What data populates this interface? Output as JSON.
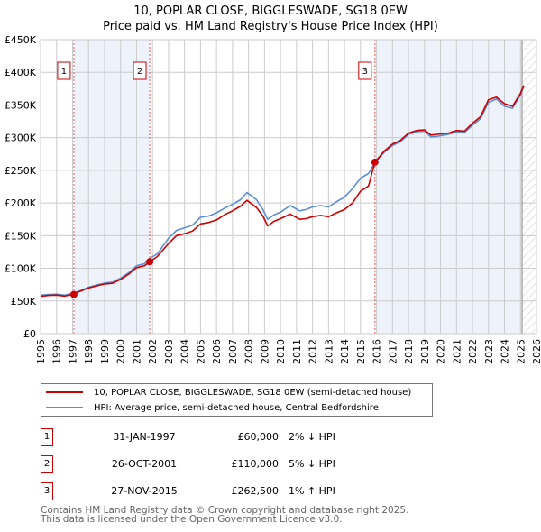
{
  "title_line1": "10, POPLAR CLOSE, BIGGLESWADE, SG18 0EW",
  "title_line2": "Price paid vs. HM Land Registry's House Price Index (HPI)",
  "colors": {
    "price": "#cc0000",
    "hpi": "#5b8fd4",
    "shade": "#eef2fb",
    "grid": "#cccccc"
  },
  "chart_data": {
    "type": "line",
    "title": "10, POPLAR CLOSE, BIGGLESWADE, SG18 0EW — Price paid vs. HM Land Registry's House Price Index (HPI)",
    "xlabel": "",
    "ylabel": "",
    "xlim": [
      1995,
      2026
    ],
    "ylim": [
      0,
      450000
    ],
    "grid": true,
    "x_ticks": [
      "1995",
      "1996",
      "1997",
      "1998",
      "1999",
      "2000",
      "2001",
      "2002",
      "2003",
      "2004",
      "2005",
      "2006",
      "2007",
      "2008",
      "2009",
      "2010",
      "2011",
      "2012",
      "2013",
      "2014",
      "2015",
      "2016",
      "2017",
      "2018",
      "2019",
      "2020",
      "2021",
      "2022",
      "2023",
      "2024",
      "2025",
      "2026"
    ],
    "y_ticks": [
      {
        "v": 0,
        "label": "£0"
      },
      {
        "v": 50000,
        "label": "£50K"
      },
      {
        "v": 100000,
        "label": "£100K"
      },
      {
        "v": 150000,
        "label": "£150K"
      },
      {
        "v": 200000,
        "label": "£200K"
      },
      {
        "v": 250000,
        "label": "£250K"
      },
      {
        "v": 300000,
        "label": "£300K"
      },
      {
        "v": 350000,
        "label": "£350K"
      },
      {
        "v": 400000,
        "label": "£400K"
      },
      {
        "v": 450000,
        "label": "£450K"
      }
    ],
    "shaded_ranges": [
      [
        1997.08,
        2001.82
      ],
      [
        2015.9,
        2025.1
      ]
    ],
    "hatched_from": 2025.1,
    "x": [
      1995,
      1995.5,
      1996,
      1996.5,
      1997,
      1997.5,
      1998,
      1998.5,
      1999,
      1999.5,
      2000,
      2000.5,
      2001,
      2001.5,
      2001.82,
      2002.3,
      2003,
      2003.5,
      2004,
      2004.5,
      2005,
      2005.5,
      2006,
      2006.5,
      2007,
      2007.5,
      2007.9,
      2008.5,
      2008.9,
      2009.2,
      2009.6,
      2010,
      2010.6,
      2011.2,
      2011.6,
      2012,
      2012.5,
      2013,
      2013.5,
      2014,
      2014.5,
      2015,
      2015.5,
      2015.9,
      2016.5,
      2017,
      2017.5,
      2018,
      2018.5,
      2019,
      2019.4,
      2019.8,
      2020.5,
      2021,
      2021.5,
      2022,
      2022.5,
      2023,
      2023.5,
      2024,
      2024.5,
      2025,
      2025.2
    ],
    "series": [
      {
        "name": "10, POPLAR CLOSE, BIGGLESWADE, SG18 0EW (semi-detached house)",
        "color": "#cc0000",
        "values": [
          57000,
          58500,
          59000,
          57500,
          60000,
          65000,
          70000,
          73000,
          76000,
          77000,
          83000,
          91000,
          101000,
          104000,
          110000,
          118000,
          138000,
          150000,
          153000,
          157000,
          168000,
          170000,
          174000,
          182000,
          188000,
          195000,
          204000,
          193000,
          180000,
          165000,
          172000,
          176000,
          183000,
          175000,
          176000,
          179000,
          181000,
          179000,
          185000,
          190000,
          200000,
          218000,
          226000,
          262500,
          280000,
          290000,
          296000,
          307000,
          311000,
          312000,
          304000,
          305000,
          307000,
          311000,
          310000,
          322000,
          332000,
          358000,
          362000,
          352000,
          348000,
          368000,
          380000
        ]
      },
      {
        "name": "HPI: Average price, semi-detached house, Central Bedfordshire",
        "color": "#5b8fd4",
        "values": [
          59000,
          60000,
          60500,
          59000,
          61500,
          66000,
          71000,
          74500,
          77500,
          79000,
          85000,
          93000,
          104000,
          107000,
          115000,
          122000,
          146000,
          158000,
          162000,
          166000,
          178000,
          180000,
          185000,
          192000,
          198000,
          205000,
          216000,
          205000,
          190000,
          175000,
          182000,
          186000,
          196000,
          188000,
          190000,
          194000,
          196000,
          194000,
          202000,
          209000,
          222000,
          238000,
          245000,
          262000,
          278000,
          288000,
          294000,
          305000,
          309000,
          310000,
          301000,
          302000,
          305000,
          309000,
          308000,
          319000,
          329000,
          354000,
          359000,
          348000,
          345000,
          365000,
          378000
        ]
      }
    ],
    "sales": [
      {
        "id": "1",
        "x": 1997.08,
        "value": 60000
      },
      {
        "id": "2",
        "x": 2001.82,
        "value": 110000
      },
      {
        "id": "3",
        "x": 2015.9,
        "value": 262500
      }
    ]
  },
  "legend": [
    {
      "label": "10, POPLAR CLOSE, BIGGLESWADE, SG18 0EW (semi-detached house)"
    },
    {
      "label": "HPI: Average price, semi-detached house, Central Bedfordshire"
    }
  ],
  "transactions": [
    {
      "num": "1",
      "date": "31-JAN-1997",
      "price": "£60,000",
      "hpi": "2% ↓ HPI"
    },
    {
      "num": "2",
      "date": "26-OCT-2001",
      "price": "£110,000",
      "hpi": "5% ↓ HPI"
    },
    {
      "num": "3",
      "date": "27-NOV-2015",
      "price": "£262,500",
      "hpi": "1% ↑ HPI"
    }
  ],
  "footer": {
    "line1": "Contains HM Land Registry data © Crown copyright and database right 2025.",
    "line2": "This data is licensed under the Open Government Licence v3.0."
  }
}
